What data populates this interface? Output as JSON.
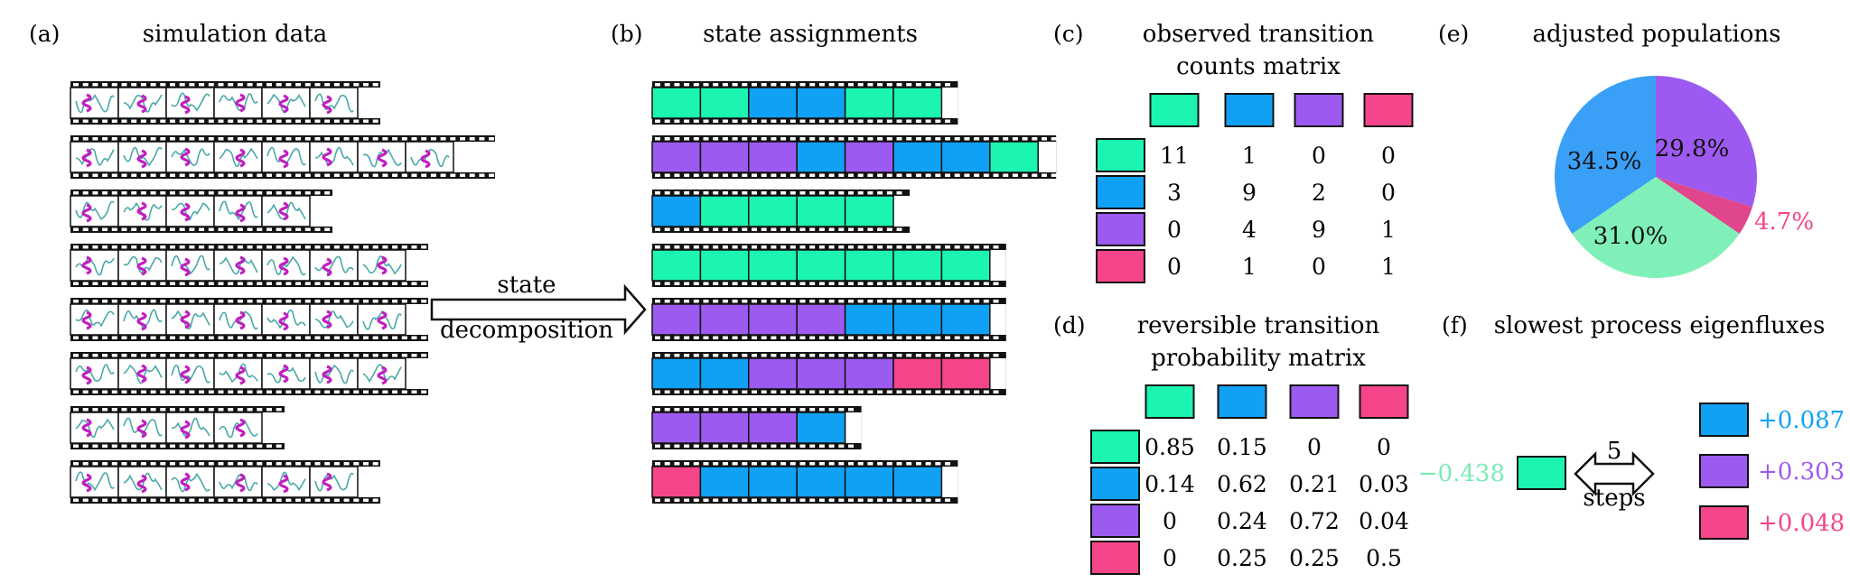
{
  "colors": {
    "green": "#1cf5b2",
    "blue": "#10a1f5",
    "purple": "#9d5af0",
    "pink": "#f5458a",
    "green_text": "#78ecb5",
    "pie_green": "#80f0b8",
    "pie_blue": "#3a9ff6"
  },
  "panel_a": {
    "letter": "(a)",
    "title": "simulation data",
    "row_frames": [
      6,
      8,
      5,
      7,
      7,
      7,
      4,
      6
    ]
  },
  "arrow": {
    "line1": "state",
    "line2": "decomposition"
  },
  "panel_b": {
    "letter": "(b)",
    "title": "state assignments",
    "rows": [
      [
        "green",
        "green",
        "blue",
        "blue",
        "green",
        "green"
      ],
      [
        "purple",
        "purple",
        "purple",
        "blue",
        "purple",
        "blue",
        "blue",
        "green"
      ],
      [
        "blue",
        "green",
        "green",
        "green",
        "green"
      ],
      [
        "green",
        "green",
        "green",
        "green",
        "green",
        "green",
        "green"
      ],
      [
        "purple",
        "purple",
        "purple",
        "purple",
        "blue",
        "blue",
        "blue"
      ],
      [
        "blue",
        "blue",
        "purple",
        "purple",
        "purple",
        "pink",
        "pink"
      ],
      [
        "purple",
        "purple",
        "purple",
        "blue"
      ],
      [
        "pink",
        "blue",
        "blue",
        "blue",
        "blue",
        "blue"
      ]
    ]
  },
  "panel_c": {
    "letter": "(c)",
    "title_line1": "observed transition",
    "title_line2": "counts matrix",
    "states": [
      "green",
      "blue",
      "purple",
      "pink"
    ],
    "matrix": [
      [
        "11",
        "1",
        "0",
        "0"
      ],
      [
        "3",
        "9",
        "2",
        "0"
      ],
      [
        "0",
        "4",
        "9",
        "1"
      ],
      [
        "0",
        "1",
        "0",
        "1"
      ]
    ]
  },
  "panel_d": {
    "letter": "(d)",
    "title_line1": "reversible transition",
    "title_line2": "probability matrix",
    "states": [
      "green",
      "blue",
      "purple",
      "pink"
    ],
    "matrix": [
      [
        "0.85",
        "0.15",
        "0",
        "0"
      ],
      [
        "0.14",
        "0.62",
        "0.21",
        "0.03"
      ],
      [
        "0",
        "0.24",
        "0.72",
        "0.04"
      ],
      [
        "0",
        "0.25",
        "0.25",
        "0.5"
      ]
    ]
  },
  "panel_e": {
    "letter": "(e)",
    "title": "adjusted populations",
    "slices": [
      {
        "state": "purple",
        "value": 29.8,
        "label": "29.8%"
      },
      {
        "state": "pink",
        "value": 4.7,
        "label": "4.7%"
      },
      {
        "state": "green",
        "value": 31.0,
        "label": "31.0%"
      },
      {
        "state": "blue",
        "value": 34.5,
        "label": "34.5%"
      }
    ]
  },
  "panel_f": {
    "letter": "(f)",
    "title": "slowest process eigenfluxes",
    "source": {
      "state": "green",
      "value": "−0.438"
    },
    "steps_number": "5",
    "steps_label": "steps",
    "targets": [
      {
        "state": "blue",
        "value": "+0.087"
      },
      {
        "state": "purple",
        "value": "+0.303"
      },
      {
        "state": "pink",
        "value": "+0.048"
      }
    ]
  }
}
